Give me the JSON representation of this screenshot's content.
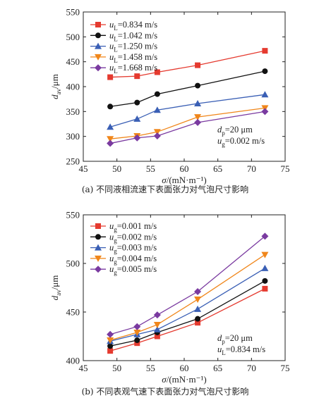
{
  "chart_data": [
    {
      "type": "line",
      "caption": "(a) 不同液相流速下表面张力对气泡尺寸影响",
      "xlabel": "σ/(mN·m⁻¹)",
      "ylabel": "d_av/μm",
      "xlim": [
        45,
        75
      ],
      "ylim": [
        250,
        550
      ],
      "xticks": [
        45,
        50,
        55,
        60,
        65,
        70,
        75
      ],
      "yticks": [
        250,
        300,
        350,
        400,
        450,
        500,
        550
      ],
      "legend_position": "top-left",
      "x": [
        49,
        53,
        56,
        62,
        72
      ],
      "series": [
        {
          "name": "u_L=0.834 m/s",
          "marker": "square",
          "color": "#e53a2f",
          "values": [
            419,
            421,
            429,
            443,
            472
          ]
        },
        {
          "name": "u_L=1.042 m/s",
          "marker": "circle",
          "color": "#111111",
          "values": [
            360,
            368,
            385,
            402,
            431
          ]
        },
        {
          "name": "u_L=1.250 m/s",
          "marker": "triangle-up",
          "color": "#3a5fb5",
          "values": [
            319,
            335,
            353,
            366,
            384
          ]
        },
        {
          "name": "u_L=1.458 m/s",
          "marker": "triangle-down",
          "color": "#f0861a",
          "values": [
            295,
            301,
            309,
            339,
            357
          ]
        },
        {
          "name": "u_L=1.668 m/s",
          "marker": "diamond",
          "color": "#7a3aa0",
          "values": [
            286,
            297,
            301,
            328,
            350
          ]
        }
      ],
      "annotation": [
        "d_p=20 μm",
        "u_g=0.002 m/s"
      ]
    },
    {
      "type": "line",
      "caption": "(b) 不同表观气速下表面张力对气泡尺寸影响",
      "xlabel": "σ/(mN·m⁻¹)",
      "ylabel": "d_av/μm",
      "xlim": [
        45,
        75
      ],
      "ylim": [
        400,
        550
      ],
      "xticks": [
        45,
        50,
        55,
        60,
        65,
        70,
        75
      ],
      "yticks": [
        400,
        450,
        500,
        550
      ],
      "legend_position": "top-left",
      "x": [
        49,
        53,
        56,
        62,
        72
      ],
      "series": [
        {
          "name": "u_g=0.001 m/s",
          "marker": "square",
          "color": "#e53a2f",
          "values": [
            410,
            418,
            425,
            439,
            474
          ]
        },
        {
          "name": "u_g=0.002 m/s",
          "marker": "circle",
          "color": "#111111",
          "values": [
            415,
            421,
            429,
            443,
            482
          ]
        },
        {
          "name": "u_g=0.003 m/s",
          "marker": "triangle-up",
          "color": "#3a5fb5",
          "values": [
            420,
            427,
            432,
            453,
            495
          ]
        },
        {
          "name": "u_g=0.004 m/s",
          "marker": "triangle-down",
          "color": "#f0861a",
          "values": [
            421,
            429,
            437,
            463,
            509
          ]
        },
        {
          "name": "u_g=0.005 m/s",
          "marker": "diamond",
          "color": "#7a3aa0",
          "values": [
            427,
            435,
            447,
            471,
            528
          ]
        }
      ],
      "annotation": [
        "d_p=20 μm",
        "u_L=0.834 m/s"
      ]
    }
  ]
}
